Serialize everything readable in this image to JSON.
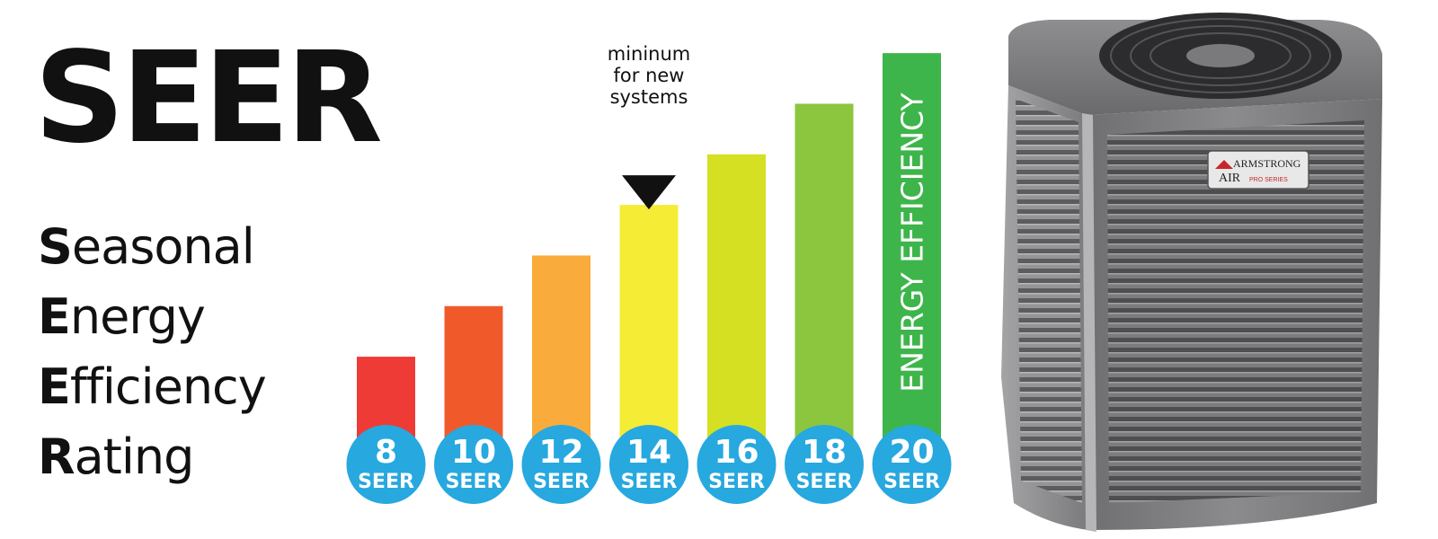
{
  "header": {
    "title": "SEER",
    "acronym": [
      {
        "lead": "S",
        "rest": "easonal"
      },
      {
        "lead": "E",
        "rest": "nergy"
      },
      {
        "lead": "E",
        "rest": "fficiency"
      },
      {
        "lead": "R",
        "rest": "ating"
      }
    ]
  },
  "chart_data": {
    "type": "bar",
    "categories": [
      "8",
      "10",
      "12",
      "14",
      "16",
      "18",
      "20"
    ],
    "values": [
      8,
      10,
      12,
      14,
      16,
      18,
      20
    ],
    "unit_label": "SEER",
    "colors": [
      "#ee3b36",
      "#f05a2b",
      "#f9ab3b",
      "#f4ec35",
      "#d5e022",
      "#8cc63f",
      "#3db54a"
    ],
    "ylim": [
      4.7,
      21
    ],
    "axis_label": "ENERGY EFFICIENCY",
    "annotation": {
      "category": "14",
      "text": [
        "mininum",
        "for new",
        "systems"
      ]
    },
    "circle_color": "#27a8df"
  },
  "product": {
    "brand_line1": "ARMSTRONG",
    "brand_line2": "AIR",
    "series": "PRO SERIES"
  }
}
